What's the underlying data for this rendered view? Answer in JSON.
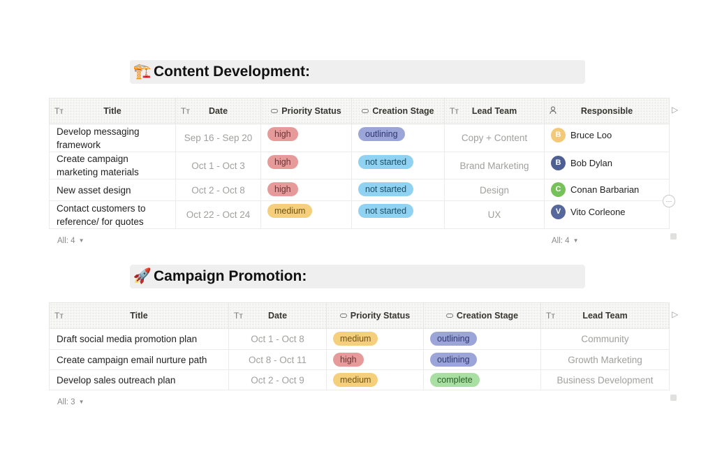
{
  "section1": {
    "emoji": "🏗️",
    "title": "Content Development:",
    "columns": [
      "Title",
      "Date",
      "Priority Status",
      "Creation Stage",
      "Lead Team",
      "Responsible"
    ],
    "rows": [
      {
        "title": "Develop messaging framework",
        "date": "Sep 16 - Sep 20",
        "priority": "high",
        "stage": "outlining",
        "team": "Copy + Content",
        "person": "Bruce Loo",
        "initial": "B",
        "avatar_color": "#f3c978"
      },
      {
        "title": "Create campaign marketing materials",
        "date": "Oct 1 - Oct 3",
        "priority": "high",
        "stage": "not started",
        "team": "Brand Marketing",
        "person": "Bob Dylan",
        "initial": "B",
        "avatar_color": "#4d5f93"
      },
      {
        "title": "New asset design",
        "date": "Oct 2 - Oct 8",
        "priority": "high",
        "stage": "not started",
        "team": "Design",
        "person": "Conan Barbarian",
        "initial": "C",
        "avatar_color": "#77c15a"
      },
      {
        "title": "Contact customers to reference/ for quotes",
        "date": "Oct 22 - Oct 24",
        "priority": "medium",
        "stage": "not started",
        "team": "UX",
        "person": "Vito Corleone",
        "initial": "V",
        "avatar_color": "#55679b"
      }
    ],
    "count_left": "All: 4",
    "count_right": "All: 4"
  },
  "section2": {
    "emoji": "🚀",
    "title": "Campaign Promotion:",
    "columns": [
      "Title",
      "Date",
      "Priority Status",
      "Creation Stage",
      "Lead Team"
    ],
    "rows": [
      {
        "title": "Draft social media promotion plan",
        "date": "Oct 1 - Oct 8",
        "priority": "medium",
        "stage": "outlining",
        "team": "Community"
      },
      {
        "title": "Create campaign email nurture path",
        "date": "Oct 8 - Oct 11",
        "priority": "high",
        "stage": "outlining",
        "team": "Growth Marketing"
      },
      {
        "title": "Develop sales outreach plan",
        "date": "Oct 2 - Oct 9",
        "priority": "medium",
        "stage": "complete",
        "team": "Business Development"
      }
    ],
    "count_left": "All: 3"
  },
  "icons": {
    "text_column": "Tт",
    "select_column": "⊂⊃",
    "person_column": "person-icon",
    "caret": "▼",
    "more": "···",
    "expand": "▸"
  },
  "colors": {
    "high": "#e69a9a",
    "medium": "#f5cf7b",
    "outlining": "#9ca5d8",
    "not_started": "#8fd2f2",
    "complete": "#a9dfa3"
  }
}
